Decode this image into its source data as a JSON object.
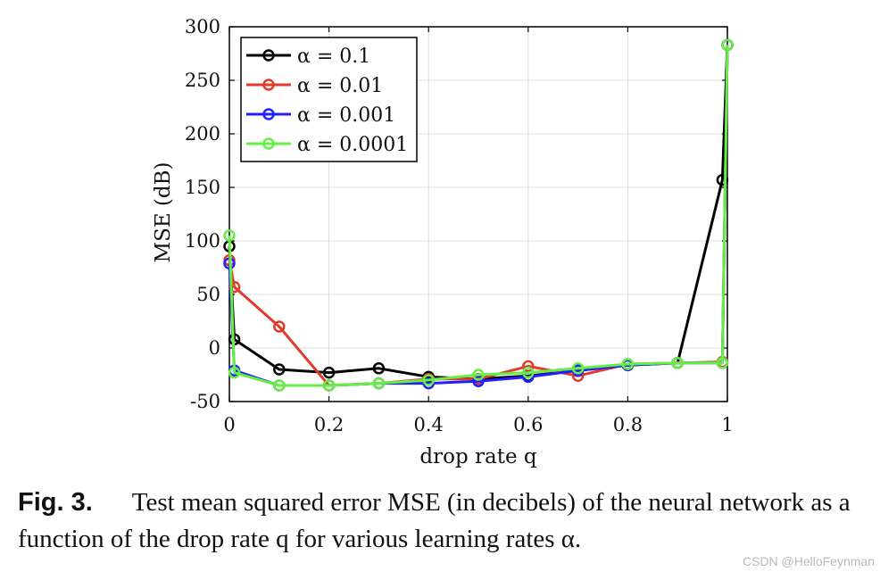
{
  "chart_data": {
    "type": "line",
    "xlabel": "drop rate q",
    "ylabel": "MSE (dB)",
    "xlim": [
      0,
      1
    ],
    "ylim": [
      -50,
      300
    ],
    "xticks": [
      0,
      0.2,
      0.4,
      0.6,
      0.8,
      1
    ],
    "xtick_labels": [
      "0",
      "0.2",
      "0.4",
      "0.6",
      "0.8",
      "1"
    ],
    "yticks": [
      -50,
      0,
      50,
      100,
      150,
      200,
      250,
      300
    ],
    "ytick_labels": [
      "-50",
      "0",
      "50",
      "100",
      "150",
      "200",
      "250",
      "300"
    ],
    "grid": true,
    "legend_position": "top-left",
    "x": [
      0,
      0.01,
      0.1,
      0.2,
      0.3,
      0.4,
      0.5,
      0.6,
      0.7,
      0.8,
      0.9,
      0.99,
      1
    ],
    "series": [
      {
        "name": "α = 0.1",
        "color": "#000000",
        "values": [
          95,
          8,
          -20,
          -23,
          -19,
          -27,
          -29,
          -26,
          -21,
          -16,
          -14,
          157,
          283
        ]
      },
      {
        "name": "α = 0.01",
        "color": "#e03c2b",
        "values": [
          82,
          57,
          20,
          -35,
          -33,
          -29,
          -29,
          -17,
          -26,
          -15,
          -14,
          -13,
          283
        ]
      },
      {
        "name": "α = 0.001",
        "color": "#1f1fff",
        "values": [
          79,
          -21,
          -35,
          -35,
          -33,
          -33,
          -31,
          -27,
          -21,
          -16,
          -14,
          -14,
          283
        ]
      },
      {
        "name": "α = 0.0001",
        "color": "#66ee44",
        "values": [
          105,
          -23,
          -35,
          -35,
          -33,
          -30,
          -25,
          -23,
          -19,
          -15,
          -14,
          -14,
          283
        ]
      }
    ]
  },
  "caption": {
    "label": "Fig. 3.",
    "text": "Test mean squared error MSE (in decibels) of the neural network as a function of the drop rate q for various learning rates α."
  },
  "watermark": "CSDN @HelloFeynman"
}
